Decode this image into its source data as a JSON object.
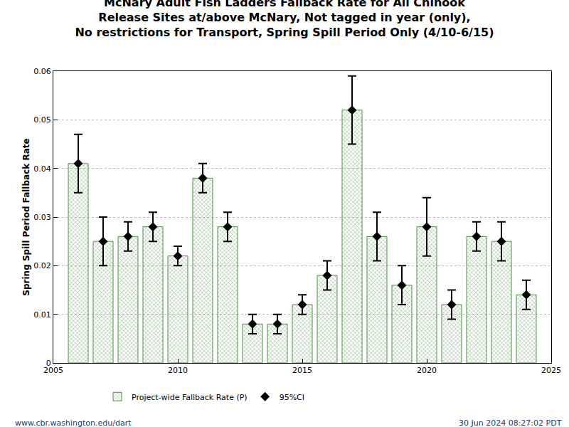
{
  "chart_data": {
    "type": "bar",
    "title": "McNary Adult Fish Ladders Fallback Rate for All Chinook\nRelease Sites at/above McNary, Not tagged in year (only),\nNo restrictions for Transport, Spring Spill Period Only (4/10-6/15)",
    "y_label": "Spring Spill Period Fallback Rate",
    "x": [
      2006,
      2007,
      2008,
      2009,
      2010,
      2011,
      2012,
      2013,
      2014,
      2015,
      2016,
      2017,
      2018,
      2019,
      2020,
      2021,
      2022,
      2023,
      2024
    ],
    "series": [
      {
        "name": "Project-wide Fallback Rate (P)",
        "type": "bar",
        "color": "#93d49b",
        "values": [
          0.041,
          0.025,
          0.026,
          0.028,
          0.022,
          0.038,
          0.028,
          0.008,
          0.008,
          0.012,
          0.018,
          0.052,
          0.026,
          0.016,
          0.028,
          0.012,
          0.026,
          0.025,
          0.014
        ]
      },
      {
        "name": "95%CI",
        "type": "scatter",
        "color": "#000000",
        "marker": "diamond",
        "values": [
          0.041,
          0.025,
          0.026,
          0.028,
          0.022,
          0.038,
          0.028,
          0.008,
          0.008,
          0.012,
          0.018,
          0.052,
          0.026,
          0.016,
          0.028,
          0.012,
          0.026,
          0.025,
          0.014
        ],
        "ci_low": [
          0.035,
          0.02,
          0.023,
          0.025,
          0.02,
          0.035,
          0.025,
          0.006,
          0.006,
          0.01,
          0.015,
          0.045,
          0.021,
          0.012,
          0.022,
          0.009,
          0.023,
          0.021,
          0.011
        ],
        "ci_high": [
          0.047,
          0.03,
          0.029,
          0.031,
          0.024,
          0.041,
          0.031,
          0.01,
          0.01,
          0.014,
          0.021,
          0.059,
          0.031,
          0.02,
          0.034,
          0.015,
          0.029,
          0.029,
          0.017
        ]
      }
    ],
    "xlim": [
      2005,
      2025
    ],
    "xticks": [
      2005,
      2010,
      2015,
      2020,
      2025
    ],
    "ylim": [
      0,
      0.06
    ],
    "yticks": [
      0,
      0.01,
      0.02,
      0.03,
      0.04,
      0.05,
      0.06
    ],
    "grid": true,
    "legend": "bottom",
    "annotations": [
      "www.cbr.washington.edu/dart",
      "30 Jun 2024 08:27:02 PDT"
    ]
  }
}
